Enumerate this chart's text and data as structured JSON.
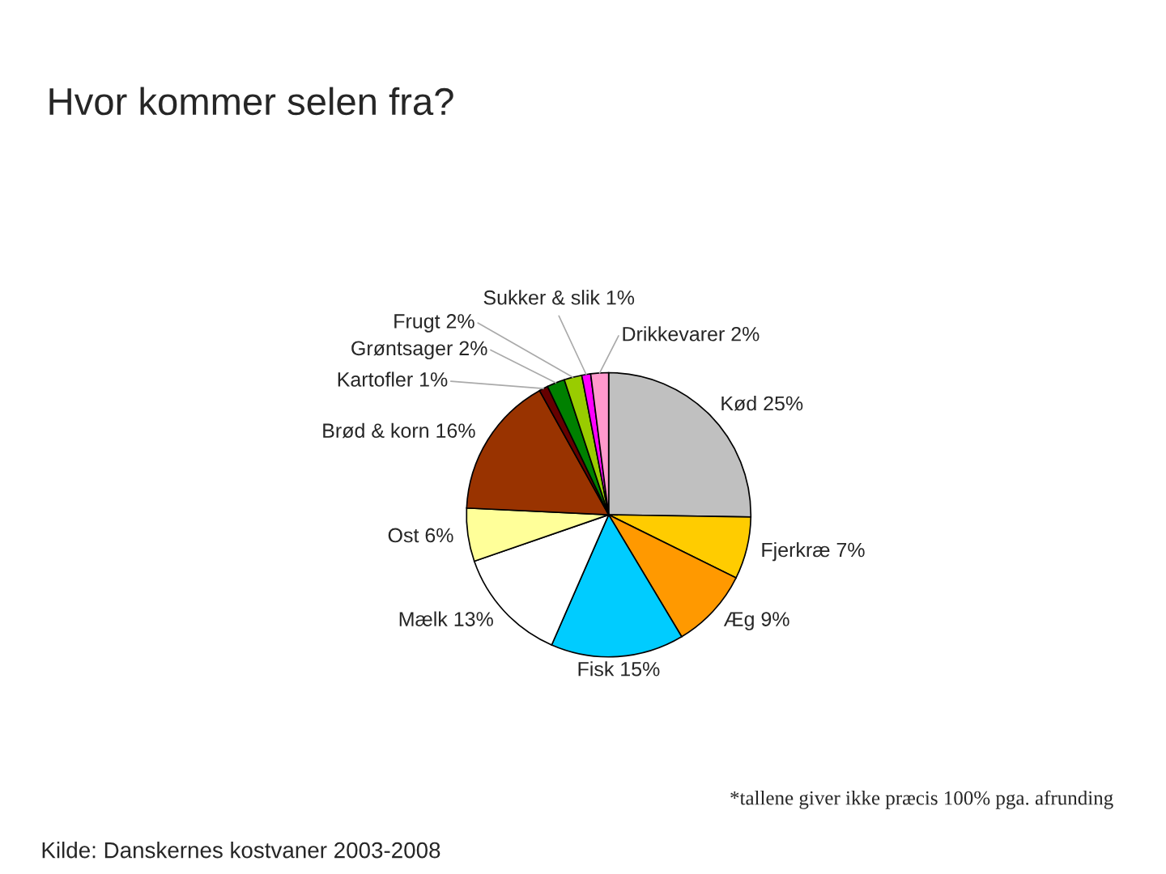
{
  "chart_data": {
    "type": "pie",
    "title": "Hvor kommer selen fra?",
    "categories": [
      "Kød",
      "Fjerkræ",
      "Æg",
      "Fisk",
      "Mælk",
      "Ost",
      "Brød & korn",
      "Kartofler",
      "Grøntsager",
      "Frugt",
      "Sukker & slik",
      "Drikkevarer"
    ],
    "values": [
      25,
      7,
      9,
      15,
      13,
      6,
      16,
      1,
      2,
      2,
      1,
      2
    ],
    "value_labels": [
      "25%",
      "7%",
      "9%",
      "15%",
      "13%",
      "6%",
      "16%",
      "1%",
      "2%",
      "2%",
      "1%",
      "2%"
    ],
    "colors": [
      "#c0c0c0",
      "#ffcc00",
      "#ff9900",
      "#00ccff",
      "#ffffff",
      "#ffff99",
      "#993300",
      "#660000",
      "#008000",
      "#99cc00",
      "#ff00ff",
      "#ff99cc"
    ],
    "annotations": [
      "*tallene giver ikke præcis 100% pga. afrunding",
      "Kilde: Danskernes kostvaner 2003-2008"
    ]
  }
}
